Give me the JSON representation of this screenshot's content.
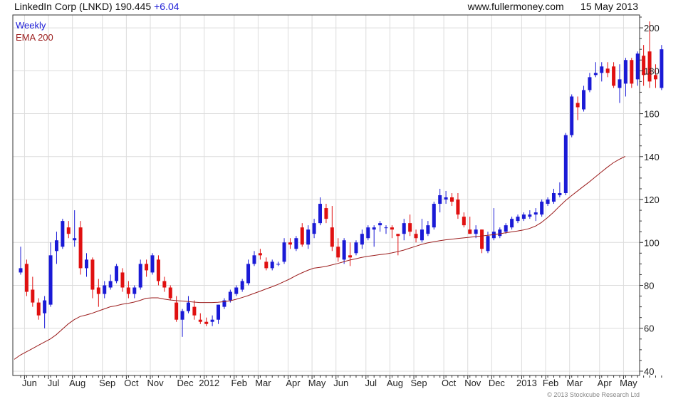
{
  "header": {
    "title": "LinkedIn Corp (LNKD) 190.445",
    "change": "+6.04",
    "site": "www.fullermoney.com",
    "date": "15 May 2013"
  },
  "legend": {
    "weekly": "Weekly",
    "ema": "EMA 200"
  },
  "copyright": "© 2013 Stockcube Research Ltd",
  "colors": {
    "up": "#1a1ad6",
    "down": "#e01010",
    "ema": "#9b1c1c",
    "grid": "#dcdcdc"
  },
  "chart_data": {
    "type": "candlestick",
    "x_labels": [
      {
        "label": "Jun",
        "index": 1
      },
      {
        "label": "Jul",
        "index": 5
      },
      {
        "label": "Aug",
        "index": 9
      },
      {
        "label": "Sep",
        "index": 14
      },
      {
        "label": "Oct",
        "index": 18
      },
      {
        "label": "Nov",
        "index": 22
      },
      {
        "label": "Dec",
        "index": 27
      },
      {
        "label": "2012",
        "index": 31
      },
      {
        "label": "Feb",
        "index": 36
      },
      {
        "label": "Mar",
        "index": 40
      },
      {
        "label": "Apr",
        "index": 45
      },
      {
        "label": "May",
        "index": 49
      },
      {
        "label": "Jun",
        "index": 53
      },
      {
        "label": "Jul",
        "index": 58
      },
      {
        "label": "Aug",
        "index": 62
      },
      {
        "label": "Sep",
        "index": 66
      },
      {
        "label": "Oct",
        "index": 71
      },
      {
        "label": "Nov",
        "index": 75
      },
      {
        "label": "Dec",
        "index": 79
      },
      {
        "label": "2013",
        "index": 84
      },
      {
        "label": "Feb",
        "index": 88
      },
      {
        "label": "Mar",
        "index": 92
      },
      {
        "label": "Apr",
        "index": 97
      },
      {
        "label": "May",
        "index": 101
      }
    ],
    "y_ticks": [
      40,
      60,
      80,
      100,
      120,
      140,
      160,
      180,
      200
    ],
    "ylim": [
      38,
      206
    ],
    "candles": [
      {
        "o": 86,
        "h": 98,
        "l": 85,
        "c": 88
      },
      {
        "o": 90,
        "h": 92,
        "l": 75,
        "c": 77
      },
      {
        "o": 78,
        "h": 84,
        "l": 70,
        "c": 72
      },
      {
        "o": 72,
        "h": 74,
        "l": 64,
        "c": 66
      },
      {
        "o": 67,
        "h": 75,
        "l": 60,
        "c": 73
      },
      {
        "o": 71,
        "h": 100,
        "l": 70,
        "c": 94
      },
      {
        "o": 96,
        "h": 105,
        "l": 90,
        "c": 101
      },
      {
        "o": 98,
        "h": 111,
        "l": 97,
        "c": 110
      },
      {
        "o": 107,
        "h": 110,
        "l": 102,
        "c": 104
      },
      {
        "o": 101,
        "h": 115,
        "l": 98,
        "c": 102
      },
      {
        "o": 107,
        "h": 110,
        "l": 85,
        "c": 88
      },
      {
        "o": 88,
        "h": 95,
        "l": 84,
        "c": 92
      },
      {
        "o": 92,
        "h": 93,
        "l": 74,
        "c": 78
      },
      {
        "o": 79,
        "h": 83,
        "l": 70,
        "c": 76
      },
      {
        "o": 76,
        "h": 82,
        "l": 74,
        "c": 80
      },
      {
        "o": 79,
        "h": 85,
        "l": 78,
        "c": 82
      },
      {
        "o": 82,
        "h": 90,
        "l": 81,
        "c": 89
      },
      {
        "o": 86,
        "h": 88,
        "l": 77,
        "c": 79
      },
      {
        "o": 79,
        "h": 82,
        "l": 74,
        "c": 76
      },
      {
        "o": 76,
        "h": 80,
        "l": 74,
        "c": 79
      },
      {
        "o": 79,
        "h": 92,
        "l": 78,
        "c": 90
      },
      {
        "o": 90,
        "h": 92,
        "l": 84,
        "c": 87
      },
      {
        "o": 86,
        "h": 95,
        "l": 85,
        "c": 94
      },
      {
        "o": 92,
        "h": 94,
        "l": 80,
        "c": 82
      },
      {
        "o": 82,
        "h": 84,
        "l": 77,
        "c": 79
      },
      {
        "o": 79,
        "h": 80,
        "l": 73,
        "c": 74
      },
      {
        "o": 72,
        "h": 75,
        "l": 63,
        "c": 64
      },
      {
        "o": 64,
        "h": 69,
        "l": 56,
        "c": 68
      },
      {
        "o": 68,
        "h": 75,
        "l": 67,
        "c": 72
      },
      {
        "o": 70,
        "h": 73,
        "l": 64,
        "c": 66
      },
      {
        "o": 64,
        "h": 67,
        "l": 62,
        "c": 63
      },
      {
        "o": 63,
        "h": 65,
        "l": 61,
        "c": 62
      },
      {
        "o": 63,
        "h": 66,
        "l": 61,
        "c": 64
      },
      {
        "o": 64,
        "h": 71,
        "l": 62,
        "c": 71
      },
      {
        "o": 70,
        "h": 74,
        "l": 69,
        "c": 73
      },
      {
        "o": 73,
        "h": 78,
        "l": 72,
        "c": 77
      },
      {
        "o": 76,
        "h": 80,
        "l": 75,
        "c": 79
      },
      {
        "o": 78,
        "h": 83,
        "l": 77,
        "c": 82
      },
      {
        "o": 81,
        "h": 92,
        "l": 80,
        "c": 90
      },
      {
        "o": 90,
        "h": 96,
        "l": 89,
        "c": 94
      },
      {
        "o": 95,
        "h": 97,
        "l": 92,
        "c": 94
      },
      {
        "o": 91,
        "h": 93,
        "l": 87,
        "c": 88
      },
      {
        "o": 88,
        "h": 92,
        "l": 87,
        "c": 91
      },
      {
        "o": 90,
        "h": 91,
        "l": 89,
        "c": 90
      },
      {
        "o": 91,
        "h": 102,
        "l": 90,
        "c": 100
      },
      {
        "o": 100,
        "h": 102,
        "l": 97,
        "c": 99
      },
      {
        "o": 97,
        "h": 103,
        "l": 96,
        "c": 102
      },
      {
        "o": 107,
        "h": 109,
        "l": 98,
        "c": 99
      },
      {
        "o": 99,
        "h": 108,
        "l": 97,
        "c": 106
      },
      {
        "o": 104,
        "h": 111,
        "l": 102,
        "c": 109
      },
      {
        "o": 109,
        "h": 121,
        "l": 108,
        "c": 118
      },
      {
        "o": 116,
        "h": 118,
        "l": 109,
        "c": 111
      },
      {
        "o": 107,
        "h": 117,
        "l": 96,
        "c": 98
      },
      {
        "o": 98,
        "h": 102,
        "l": 91,
        "c": 93
      },
      {
        "o": 92,
        "h": 102,
        "l": 90,
        "c": 101
      },
      {
        "o": 94,
        "h": 100,
        "l": 89,
        "c": 93
      },
      {
        "o": 95,
        "h": 101,
        "l": 94,
        "c": 100
      },
      {
        "o": 99,
        "h": 106,
        "l": 97,
        "c": 104
      },
      {
        "o": 102,
        "h": 108,
        "l": 101,
        "c": 107
      },
      {
        "o": 106,
        "h": 108,
        "l": 98,
        "c": 107
      },
      {
        "o": 108,
        "h": 110,
        "l": 105,
        "c": 109
      },
      {
        "o": 107,
        "h": 108,
        "l": 104,
        "c": 107
      },
      {
        "o": 107,
        "h": 108,
        "l": 102,
        "c": 106
      },
      {
        "o": 104,
        "h": 104,
        "l": 94,
        "c": 103
      },
      {
        "o": 104,
        "h": 111,
        "l": 101,
        "c": 109
      },
      {
        "o": 109,
        "h": 113,
        "l": 103,
        "c": 105
      },
      {
        "o": 104,
        "h": 106,
        "l": 100,
        "c": 102
      },
      {
        "o": 101,
        "h": 111,
        "l": 100,
        "c": 106
      },
      {
        "o": 104,
        "h": 110,
        "l": 103,
        "c": 108
      },
      {
        "o": 107,
        "h": 119,
        "l": 106,
        "c": 118
      },
      {
        "o": 118,
        "h": 125,
        "l": 114,
        "c": 122
      },
      {
        "o": 120,
        "h": 124,
        "l": 118,
        "c": 121
      },
      {
        "o": 121,
        "h": 123,
        "l": 117,
        "c": 119
      },
      {
        "o": 120,
        "h": 123,
        "l": 111,
        "c": 113
      },
      {
        "o": 112,
        "h": 114,
        "l": 107,
        "c": 108
      },
      {
        "o": 106,
        "h": 112,
        "l": 104,
        "c": 104
      },
      {
        "o": 104,
        "h": 108,
        "l": 102,
        "c": 106
      },
      {
        "o": 106,
        "h": 106,
        "l": 95,
        "c": 97
      },
      {
        "o": 96,
        "h": 105,
        "l": 95,
        "c": 103
      },
      {
        "o": 102,
        "h": 116,
        "l": 101,
        "c": 105
      },
      {
        "o": 103,
        "h": 107,
        "l": 102,
        "c": 106
      },
      {
        "o": 105,
        "h": 109,
        "l": 104,
        "c": 108
      },
      {
        "o": 107,
        "h": 112,
        "l": 106,
        "c": 111
      },
      {
        "o": 110,
        "h": 113,
        "l": 109,
        "c": 112
      },
      {
        "o": 111,
        "h": 114,
        "l": 110,
        "c": 113
      },
      {
        "o": 112,
        "h": 115,
        "l": 111,
        "c": 113
      },
      {
        "o": 113,
        "h": 116,
        "l": 110,
        "c": 114
      },
      {
        "o": 113,
        "h": 120,
        "l": 112,
        "c": 119
      },
      {
        "o": 118,
        "h": 121,
        "l": 117,
        "c": 120
      },
      {
        "o": 119,
        "h": 125,
        "l": 118,
        "c": 123
      },
      {
        "o": 122,
        "h": 128,
        "l": 121,
        "c": 123
      },
      {
        "o": 123,
        "h": 151,
        "l": 122,
        "c": 150
      },
      {
        "o": 150,
        "h": 169,
        "l": 149,
        "c": 168
      },
      {
        "o": 165,
        "h": 168,
        "l": 157,
        "c": 163
      },
      {
        "o": 162,
        "h": 173,
        "l": 161,
        "c": 171
      },
      {
        "o": 171,
        "h": 179,
        "l": 170,
        "c": 177
      },
      {
        "o": 178,
        "h": 184,
        "l": 177,
        "c": 179
      },
      {
        "o": 179,
        "h": 184,
        "l": 175,
        "c": 182
      },
      {
        "o": 181,
        "h": 184,
        "l": 177,
        "c": 179
      },
      {
        "o": 182,
        "h": 184,
        "l": 172,
        "c": 173
      },
      {
        "o": 172,
        "h": 183,
        "l": 165,
        "c": 176
      },
      {
        "o": 174,
        "h": 186,
        "l": 168,
        "c": 185
      },
      {
        "o": 185,
        "h": 186,
        "l": 172,
        "c": 174
      },
      {
        "o": 176,
        "h": 189,
        "l": 173,
        "c": 188
      },
      {
        "o": 187,
        "h": 192,
        "l": 173,
        "c": 178
      },
      {
        "o": 189,
        "h": 203,
        "l": 172,
        "c": 175
      },
      {
        "o": 178,
        "h": 183,
        "l": 172,
        "c": 176
      },
      {
        "o": 172,
        "h": 192,
        "l": 171,
        "c": 190
      }
    ],
    "ema_200": [
      45.5,
      47.5,
      49,
      50.5,
      52,
      53.5,
      55,
      57,
      59.5,
      62,
      64,
      65.5,
      66.2,
      67,
      68,
      69,
      70,
      70.5,
      71.2,
      71.6,
      72.2,
      73,
      74,
      74.2,
      74.2,
      73.6,
      73.2,
      72.9,
      72.7,
      72.5,
      72.2,
      72,
      72,
      72,
      72.1,
      72.4,
      72.8,
      73.5,
      74.3,
      75.2,
      76.2,
      77.2,
      78.3,
      79.3,
      80.4,
      81.7,
      83,
      84.5,
      85.8,
      87,
      88,
      88.4,
      88.8,
      89.5,
      90.2,
      91,
      91.8,
      92.4,
      93,
      93.5,
      93.9,
      94.3,
      94.6,
      95.1,
      95.7,
      96.4,
      97.3,
      98.2,
      99.1,
      99.8,
      100.3,
      100.8,
      101.2,
      101.5,
      101.8,
      102.1,
      102.4,
      102.7,
      103,
      103.3,
      103.6,
      104,
      104.5,
      104.9,
      105.3,
      105.8,
      106.5,
      107.6,
      109.3,
      111.5,
      114,
      116.8,
      119.4,
      121.7,
      123.9,
      126.1,
      128.2,
      130.5,
      132.8,
      135,
      137.1,
      138.7,
      140.1
    ]
  }
}
